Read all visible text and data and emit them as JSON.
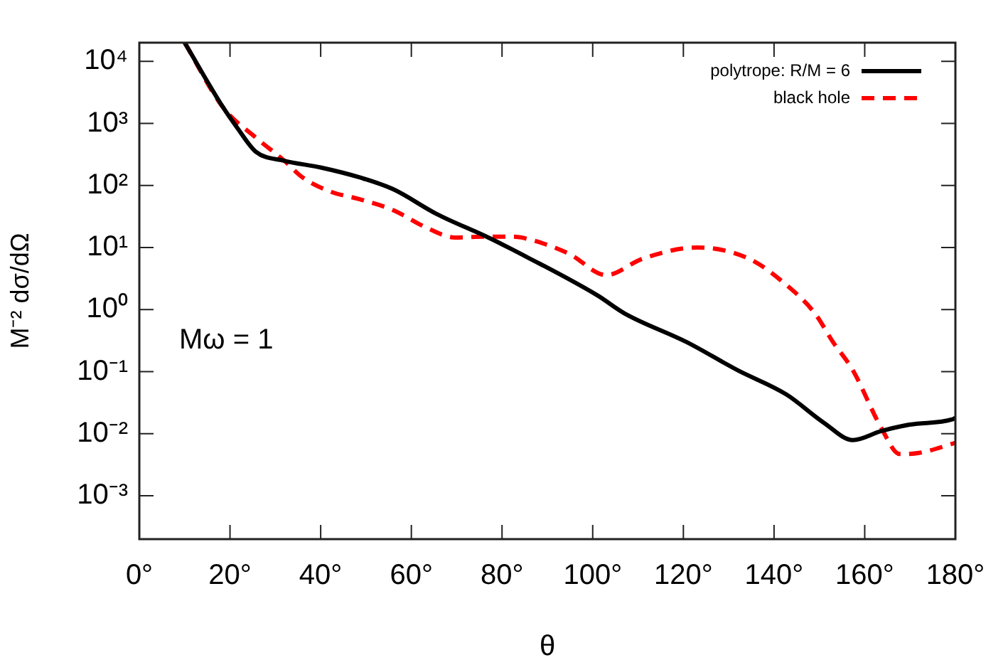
{
  "chart_data": {
    "type": "line",
    "xlabel": "θ",
    "ylabel": "M⁻² dσ/dΩ",
    "log": "y",
    "grid": false,
    "legend": "top right",
    "marker": "none",
    "xlim": [
      0,
      180
    ],
    "xticks": [
      {
        "value": 0,
        "label": "0°"
      },
      {
        "value": 20,
        "label": "20°"
      },
      {
        "value": 40,
        "label": "40°"
      },
      {
        "value": 60,
        "label": "60°"
      },
      {
        "value": 80,
        "label": "80°"
      },
      {
        "value": 100,
        "label": "100°"
      },
      {
        "value": 120,
        "label": "120°"
      },
      {
        "value": 140,
        "label": "140°"
      },
      {
        "value": 160,
        "label": "160°"
      },
      {
        "value": 180,
        "label": "180°"
      }
    ],
    "ylim": [
      0.0002,
      20000
    ],
    "yticks": [
      {
        "value": 0.001,
        "label": "10⁻³"
      },
      {
        "value": 0.01,
        "label": "10⁻²"
      },
      {
        "value": 0.1,
        "label": "10⁻¹"
      },
      {
        "value": 1,
        "label": "10⁰"
      },
      {
        "value": 10,
        "label": "10¹"
      },
      {
        "value": 100,
        "label": "10²"
      },
      {
        "value": 1000,
        "label": "10³"
      },
      {
        "value": 10000,
        "label": "10⁴"
      }
    ],
    "annotations": [
      "Mω = 1"
    ],
    "series": [
      {
        "name": "polytrope: R/M = 6",
        "color": "#000000",
        "line_style": "solid",
        "x": [
          10,
          18.5,
          21.6,
          25.7,
          32,
          40,
          48.6,
          56,
          65.5,
          77,
          82,
          101,
          107,
          120.7,
          132,
          142.7,
          151,
          157.4,
          163.6,
          169.9,
          179.3,
          180
        ],
        "values": [
          20000,
          1800,
          850,
          350,
          250,
          195,
          135,
          87,
          35,
          14.5,
          9.5,
          1.7,
          0.87,
          0.3,
          0.105,
          0.043,
          0.015,
          0.0079,
          0.011,
          0.014,
          0.017,
          0.018
        ]
      },
      {
        "name": "black hole",
        "color": "#ff0000",
        "line_style": "dashed",
        "x": [
          10,
          18.5,
          25.7,
          32,
          36,
          42.3,
          48.6,
          56,
          63.3,
          69.6,
          75.9,
          82,
          84.3,
          94.7,
          103,
          111,
          123,
          134.5,
          142.7,
          149,
          153,
          157.4,
          163.6,
          167.7,
          172,
          180
        ],
        "values": [
          20000,
          1800,
          590,
          250,
          135,
          79,
          60,
          40,
          21,
          14.5,
          15,
          15,
          14.5,
          8,
          3.6,
          6.6,
          10,
          6.6,
          2.5,
          0.87,
          0.3,
          0.105,
          0.0126,
          0.0047,
          0.0049,
          0.0071
        ]
      }
    ]
  }
}
